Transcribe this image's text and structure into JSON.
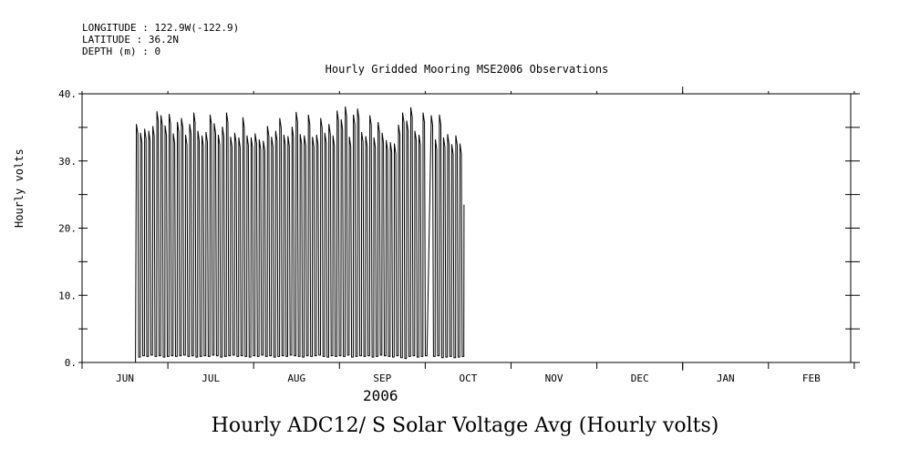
{
  "meta": {
    "longitude": "LONGITUDE : 122.9W(-122.9)",
    "latitude": "LATITUDE : 36.2N",
    "depth": "DEPTH (m) : 0"
  },
  "chart_data": {
    "type": "line",
    "title": "Hourly ADC12/ S Solar Voltage Avg (Hourly volts)",
    "subtitle": "Hourly Gridded Mooring MSE2006 Observations",
    "ylabel": "Hourly volts",
    "xlabel": "2006",
    "ylim": [
      0,
      40
    ],
    "yticks": [
      "0.",
      "10.",
      "20.",
      "30.",
      "40."
    ],
    "x_axis_unit": "months",
    "categories": [
      "JUN",
      "JUL",
      "AUG",
      "SEP",
      "OCT",
      "NOV",
      "DEC",
      "JAN",
      "FEB"
    ],
    "data_start": "2006-06-20",
    "data_end": "2006-10-15",
    "series": [
      {
        "cycle_peak_volts": [
          35.5,
          34.2,
          34.8,
          34.5,
          35.2,
          37.4,
          36.8,
          35.3,
          37.0,
          34.1,
          35.8,
          36.4,
          33.9,
          35.5,
          37.2,
          34.5,
          33.8,
          34.3,
          36.9,
          35.6,
          33.9,
          35.1,
          37.2,
          33.6,
          34.2,
          33.5,
          36.5,
          33.8,
          33.5,
          34.1,
          33.2,
          33.0,
          35.2,
          33.6,
          34.5,
          36.4,
          33.9,
          33.7,
          35.1,
          37.3,
          34.0,
          33.8,
          36.9,
          33.6,
          33.9,
          36.4,
          34.2,
          35.5,
          33.8,
          37.5,
          36.2,
          38.1,
          33.6,
          36.9,
          37.8,
          34.3,
          33.7,
          36.8,
          33.5,
          35.8,
          34.2,
          33.1,
          32.8,
          32.6,
          35.4,
          37.2,
          36.0,
          38.0,
          34.5,
          33.9,
          37.2,
          34.1,
          36.8,
          33.2,
          36.9,
          33.5,
          34.0,
          32.5,
          33.8,
          32.6
        ],
        "cycle_min_volts": [
          0.8,
          1.0,
          0.9,
          1.1,
          0.9,
          1.0,
          0.8,
          0.9,
          1.0,
          0.9,
          1.0,
          1.1,
          0.9,
          1.0,
          0.8,
          0.9,
          1.0,
          0.9,
          1.1,
          1.0,
          0.8,
          0.9,
          1.0,
          1.1,
          0.9,
          1.0,
          0.9,
          0.8,
          1.0,
          0.9,
          1.1,
          0.9,
          1.0,
          0.8,
          0.9,
          1.0,
          0.9,
          1.1,
          1.0,
          0.9,
          0.8,
          1.0,
          0.9,
          1.0,
          1.1,
          0.9,
          0.8,
          1.0,
          0.9,
          1.0,
          0.9,
          1.1,
          0.8,
          0.9,
          1.0,
          0.9,
          1.0,
          0.8,
          0.9,
          1.1,
          1.0,
          0.9,
          0.8,
          1.0,
          0.7,
          0.6,
          0.9,
          1.0,
          0.8,
          0.9,
          1.0,
          0.8,
          0.9,
          1.0,
          0.7,
          0.8,
          0.9,
          0.7,
          0.8,
          0.9
        ],
        "gaps": [
          {
            "start": "2006-10-01",
            "end": "2006-10-03"
          }
        ],
        "start_value": 0,
        "end_value": 23.5
      }
    ]
  }
}
